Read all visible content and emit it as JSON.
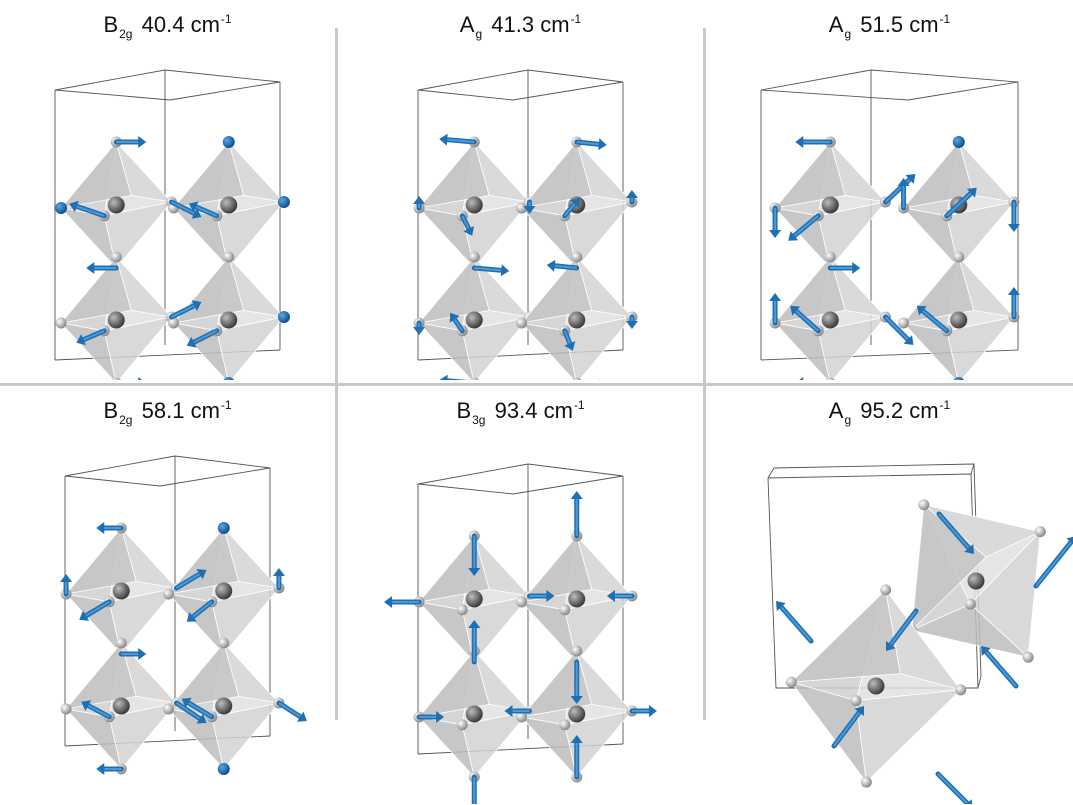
{
  "figure": {
    "panels": [
      {
        "mode": "B",
        "sub": "2g",
        "freq": "40.4",
        "unit": "cm",
        "exp": "-1"
      },
      {
        "mode": "A",
        "sub": "g",
        "freq": "41.3",
        "unit": "cm",
        "exp": "-1"
      },
      {
        "mode": "A",
        "sub": "g",
        "freq": "51.5",
        "unit": "cm",
        "exp": "-1"
      },
      {
        "mode": "B",
        "sub": "2g",
        "freq": "58.1",
        "unit": "cm",
        "exp": "-1"
      },
      {
        "mode": "B",
        "sub": "3g",
        "freq": "93.4",
        "unit": "cm",
        "exp": "-1"
      },
      {
        "mode": "A",
        "sub": "g",
        "freq": "95.2",
        "unit": "cm",
        "exp": "-1"
      }
    ],
    "colors": {
      "octahedron": "#d9d9d9",
      "octahedron_edge": "#ffffff",
      "center_atom": "#6f6f6f",
      "ligand_atom": "#c9c9c9",
      "arrow": "#1f6fb3",
      "arrow_light": "#4a9ad8",
      "cell_line": "#555555",
      "divider": "#c8c8c8"
    }
  }
}
